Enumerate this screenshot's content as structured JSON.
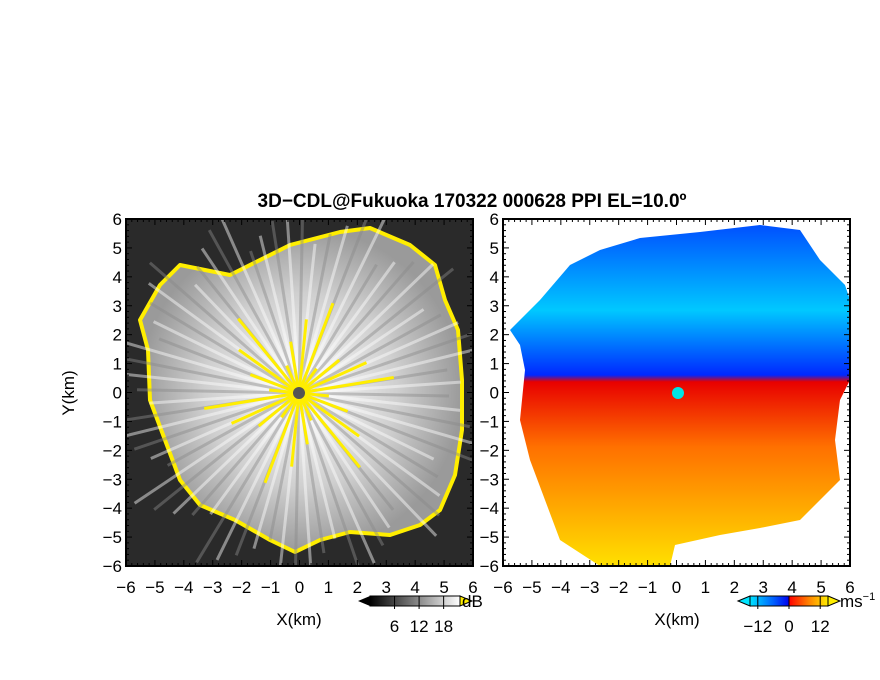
{
  "figure": {
    "title": "3D−CDL@Fukuoka 170322 000628 PPI EL=10.0º"
  },
  "chart_data": [
    {
      "type": "heatmap",
      "panel": "left",
      "xlabel": "X(km)",
      "ylabel": "Y(km)",
      "xlim": [
        -6,
        6
      ],
      "ylim": [
        -6,
        6
      ],
      "xticks": [
        "−6",
        "−5",
        "−4",
        "−3",
        "−2",
        "−1",
        "0",
        "1",
        "2",
        "3",
        "4",
        "5",
        "6"
      ],
      "yticks": [
        "6",
        "5",
        "4",
        "3",
        "2",
        "1",
        "0",
        "−1",
        "−2",
        "−3",
        "−4",
        "−5",
        "−6"
      ],
      "colorbar": {
        "label": "dB",
        "ticks": [
          "6",
          "12",
          "18"
        ],
        "tick_values": [
          6,
          12,
          18
        ],
        "range": [
          0,
          22
        ],
        "colormap": "grayscale",
        "colors": [
          "#000000",
          "#ffffff"
        ]
      },
      "overlay_color": "#ffee00",
      "description_of_field": "radial bright rays centered at origin, coverage radius about 4.5 km"
    },
    {
      "type": "heatmap",
      "panel": "right",
      "xlabel": "X(km)",
      "xlim": [
        -6,
        6
      ],
      "ylim": [
        -6,
        6
      ],
      "xticks": [
        "−6",
        "−5",
        "−4",
        "−3",
        "−2",
        "−1",
        "0",
        "1",
        "2",
        "3",
        "4",
        "5",
        "6"
      ],
      "yticks": [
        "6",
        "5",
        "4",
        "3",
        "2",
        "1",
        "0",
        "−1",
        "−2",
        "−3",
        "−4",
        "−5",
        "−6"
      ],
      "colorbar": {
        "label": "ms",
        "label_sup": "−1",
        "ticks": [
          "−12",
          "0",
          "12"
        ],
        "tick_values": [
          -12,
          0,
          12
        ],
        "range": [
          -15,
          15
        ],
        "colors": [
          "#00e5ff",
          "#0060ff",
          "#0000ee",
          "#ff0000",
          "#ff8000",
          "#ffee00"
        ]
      },
      "center_marker_color": "#00e5e5"
    }
  ]
}
